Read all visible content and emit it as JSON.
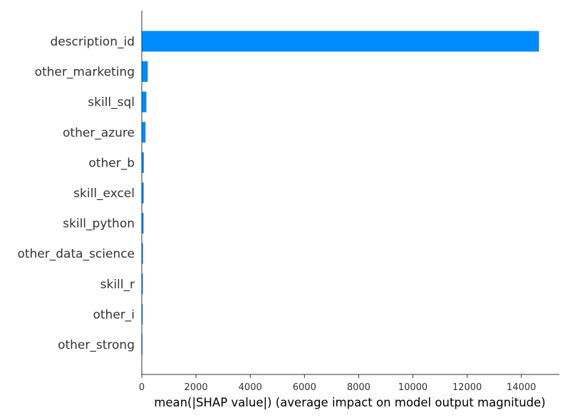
{
  "chart_data": {
    "type": "bar",
    "orientation": "horizontal",
    "title": "",
    "xlabel": "mean(|SHAP value|) (average impact on model output magnitude)",
    "ylabel": "",
    "xlim": [
      0,
      15400
    ],
    "xticks": [
      0,
      2000,
      4000,
      6000,
      8000,
      10000,
      12000,
      14000
    ],
    "grid": false,
    "categories": [
      "description_id",
      "other_marketing",
      "skill_sql",
      "other_azure",
      "other_b",
      "skill_excel",
      "skill_python",
      "other_data_science",
      "skill_r",
      "other_i",
      "other_strong"
    ],
    "values": [
      14650,
      220,
      170,
      140,
      75,
      70,
      65,
      45,
      40,
      35,
      15
    ],
    "bar_color": "#008bfb"
  }
}
